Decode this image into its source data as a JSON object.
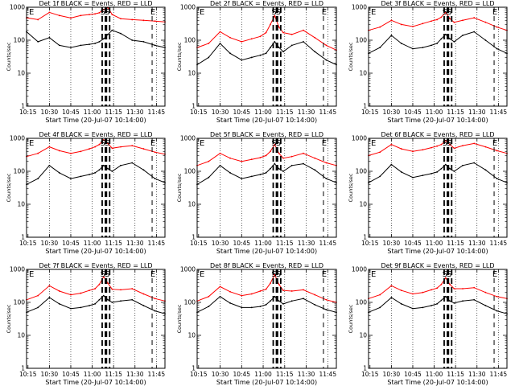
{
  "chart_data": [
    {
      "type": "line",
      "title": "Det 1f BLACK = Events, RED = LLD",
      "ylabel": "Counts/sec",
      "xlabel": "Start Time (20-Jul-07 10:14:00)",
      "yscale": "log",
      "ylim": [
        1,
        1000
      ],
      "xlim": [
        "10:14",
        "11:51"
      ],
      "xticks": [
        "10:15",
        "10:30",
        "10:45",
        "11:00",
        "11:15",
        "11:30",
        "11:45"
      ],
      "yticks": [
        "1",
        "10",
        "100",
        "1000"
      ],
      "markers": [
        "E",
        "S",
        "S",
        "E"
      ],
      "series": [
        {
          "name": "LLD",
          "color": "#ff0000",
          "x": [
            "10:14",
            "10:22",
            "10:30",
            "10:37",
            "10:45",
            "10:52",
            "10:58",
            "11:02",
            "11:05",
            "11:08",
            "11:11",
            "11:14",
            "11:20",
            "11:28",
            "11:36",
            "11:44",
            "11:51"
          ],
          "values": [
            480,
            420,
            700,
            560,
            470,
            560,
            600,
            630,
            680,
            850,
            980,
            600,
            450,
            420,
            400,
            380,
            360
          ]
        },
        {
          "name": "Events",
          "color": "#000000",
          "x": [
            "10:14",
            "10:22",
            "10:30",
            "10:37",
            "10:45",
            "10:52",
            "10:58",
            "11:02",
            "11:05",
            "11:08",
            "11:11",
            "11:14",
            "11:20",
            "11:28",
            "11:36",
            "11:44",
            "11:51"
          ],
          "values": [
            180,
            90,
            120,
            70,
            60,
            70,
            75,
            80,
            90,
            110,
            150,
            200,
            160,
            100,
            90,
            70,
            60
          ]
        }
      ]
    },
    {
      "type": "line",
      "title": "Det 2f BLACK = Events, RED = LLD",
      "ylabel": "Counts/sec",
      "xlabel": "Start Time (20-Jul-07 10:14:00)",
      "yscale": "log",
      "ylim": [
        1,
        1000
      ],
      "xlim": [
        "10:14",
        "11:51"
      ],
      "xticks": [
        "10:15",
        "10:30",
        "10:45",
        "11:00",
        "11:15",
        "11:30",
        "11:45"
      ],
      "yticks": [
        "1",
        "10",
        "100",
        "1000"
      ],
      "markers": [
        "E",
        "S",
        "S",
        "E"
      ],
      "series": [
        {
          "name": "LLD",
          "color": "#ff0000",
          "x": [
            "10:14",
            "10:22",
            "10:30",
            "10:37",
            "10:45",
            "10:52",
            "10:58",
            "11:02",
            "11:05",
            "11:08",
            "11:11",
            "11:14",
            "11:20",
            "11:28",
            "11:36",
            "11:44",
            "11:51"
          ],
          "values": [
            60,
            80,
            180,
            120,
            90,
            110,
            130,
            170,
            300,
            550,
            250,
            170,
            150,
            200,
            120,
            70,
            50
          ]
        },
        {
          "name": "Events",
          "color": "#000000",
          "x": [
            "10:14",
            "10:22",
            "10:30",
            "10:37",
            "10:45",
            "10:52",
            "10:58",
            "11:02",
            "11:05",
            "11:08",
            "11:11",
            "11:14",
            "11:20",
            "11:28",
            "11:36",
            "11:44",
            "11:51"
          ],
          "values": [
            18,
            30,
            80,
            40,
            25,
            30,
            35,
            40,
            60,
            90,
            60,
            45,
            70,
            90,
            45,
            25,
            18
          ]
        }
      ]
    },
    {
      "type": "line",
      "title": "Det 3f BLACK = Events, RED = LLD",
      "ylabel": "Counts/sec",
      "xlabel": "Start Time (20-Jul-07 10:14:00)",
      "yscale": "log",
      "ylim": [
        1,
        1000
      ],
      "xlim": [
        "10:14",
        "11:51"
      ],
      "xticks": [
        "10:15",
        "10:30",
        "10:45",
        "11:00",
        "11:15",
        "11:30",
        "11:45"
      ],
      "yticks": [
        "1",
        "10",
        "100",
        "1000"
      ],
      "markers": [
        "E",
        "S",
        "S",
        "E"
      ],
      "series": [
        {
          "name": "LLD",
          "color": "#ff0000",
          "x": [
            "10:14",
            "10:22",
            "10:30",
            "10:37",
            "10:45",
            "10:52",
            "10:58",
            "11:02",
            "11:05",
            "11:08",
            "11:11",
            "11:14",
            "11:20",
            "11:28",
            "11:36",
            "11:44",
            "11:51"
          ],
          "values": [
            200,
            250,
            400,
            300,
            260,
            320,
            380,
            420,
            500,
            700,
            450,
            350,
            400,
            480,
            350,
            250,
            200
          ]
        },
        {
          "name": "Events",
          "color": "#000000",
          "x": [
            "10:14",
            "10:22",
            "10:30",
            "10:37",
            "10:45",
            "10:52",
            "10:58",
            "11:02",
            "11:05",
            "11:08",
            "11:11",
            "11:14",
            "11:20",
            "11:28",
            "11:36",
            "11:44",
            "11:51"
          ],
          "values": [
            40,
            60,
            140,
            80,
            55,
            60,
            70,
            80,
            110,
            150,
            110,
            90,
            140,
            180,
            100,
            55,
            40
          ]
        }
      ]
    },
    {
      "type": "line",
      "title": "Det 4f BLACK = Events, RED = LLD",
      "ylabel": "Counts/sec",
      "xlabel": "Start Time (20-Jul-07 10:14:00)",
      "yscale": "log",
      "ylim": [
        1,
        1000
      ],
      "xlim": [
        "10:14",
        "11:51"
      ],
      "xticks": [
        "10:15",
        "10:30",
        "10:45",
        "11:00",
        "11:15",
        "11:30",
        "11:45"
      ],
      "yticks": [
        "1",
        "10",
        "100",
        "1000"
      ],
      "markers": [
        "E",
        "S",
        "S",
        "E"
      ],
      "series": [
        {
          "name": "LLD",
          "color": "#ff0000",
          "x": [
            "10:14",
            "10:22",
            "10:30",
            "10:37",
            "10:45",
            "10:52",
            "10:58",
            "11:02",
            "11:05",
            "11:08",
            "11:11",
            "11:14",
            "11:20",
            "11:28",
            "11:36",
            "11:44",
            "11:51"
          ],
          "values": [
            280,
            350,
            550,
            420,
            350,
            400,
            480,
            550,
            650,
            900,
            700,
            500,
            550,
            600,
            480,
            380,
            330
          ]
        },
        {
          "name": "Events",
          "color": "#000000",
          "x": [
            "10:14",
            "10:22",
            "10:30",
            "10:37",
            "10:45",
            "10:52",
            "10:58",
            "11:02",
            "11:05",
            "11:08",
            "11:11",
            "11:14",
            "11:20",
            "11:28",
            "11:36",
            "11:44",
            "11:51"
          ],
          "values": [
            40,
            60,
            150,
            90,
            60,
            70,
            80,
            90,
            110,
            150,
            120,
            100,
            150,
            180,
            110,
            60,
            45
          ]
        }
      ]
    },
    {
      "type": "line",
      "title": "Det 5f BLACK = Events, RED = LLD",
      "ylabel": "Counts/sec",
      "xlabel": "Start Time (20-Jul-07 10:14:00)",
      "yscale": "log",
      "ylim": [
        1,
        1000
      ],
      "xlim": [
        "10:14",
        "11:51"
      ],
      "xticks": [
        "10:15",
        "10:30",
        "10:45",
        "11:00",
        "11:15",
        "11:30",
        "11:45"
      ],
      "yticks": [
        "1",
        "10",
        "100",
        "1000"
      ],
      "markers": [
        "E",
        "S",
        "S",
        "E"
      ],
      "series": [
        {
          "name": "LLD",
          "color": "#ff0000",
          "x": [
            "10:14",
            "10:22",
            "10:30",
            "10:37",
            "10:45",
            "10:52",
            "10:58",
            "11:02",
            "11:05",
            "11:08",
            "11:11",
            "11:14",
            "11:20",
            "11:28",
            "11:36",
            "11:44",
            "11:51"
          ],
          "values": [
            150,
            200,
            350,
            250,
            200,
            230,
            260,
            300,
            400,
            650,
            350,
            250,
            280,
            350,
            250,
            180,
            150
          ]
        },
        {
          "name": "Events",
          "color": "#000000",
          "x": [
            "10:14",
            "10:22",
            "10:30",
            "10:37",
            "10:45",
            "10:52",
            "10:58",
            "11:02",
            "11:05",
            "11:08",
            "11:11",
            "11:14",
            "11:20",
            "11:28",
            "11:36",
            "11:44",
            "11:51"
          ],
          "values": [
            40,
            65,
            150,
            90,
            60,
            70,
            80,
            90,
            120,
            170,
            120,
            100,
            150,
            170,
            110,
            60,
            45
          ]
        }
      ]
    },
    {
      "type": "line",
      "title": "Det 6f BLACK = Events, RED = LLD",
      "ylabel": "Counts/sec",
      "xlabel": "Start Time (20-Jul-07 10:14:00)",
      "yscale": "log",
      "ylim": [
        1,
        1000
      ],
      "xlim": [
        "10:14",
        "11:51"
      ],
      "xticks": [
        "10:15",
        "10:30",
        "10:45",
        "11:00",
        "11:15",
        "11:30",
        "11:45"
      ],
      "yticks": [
        "1",
        "10",
        "100",
        "1000"
      ],
      "markers": [
        "E",
        "S",
        "S",
        "E"
      ],
      "series": [
        {
          "name": "LLD",
          "color": "#ff0000",
          "x": [
            "10:14",
            "10:22",
            "10:30",
            "10:37",
            "10:45",
            "10:52",
            "10:58",
            "11:02",
            "11:05",
            "11:08",
            "11:11",
            "11:14",
            "11:20",
            "11:28",
            "11:36",
            "11:44",
            "11:51"
          ],
          "values": [
            300,
            380,
            650,
            480,
            400,
            450,
            520,
            580,
            650,
            850,
            650,
            500,
            600,
            700,
            550,
            420,
            350
          ]
        },
        {
          "name": "Events",
          "color": "#000000",
          "x": [
            "10:14",
            "10:22",
            "10:30",
            "10:37",
            "10:45",
            "10:52",
            "10:58",
            "11:02",
            "11:05",
            "11:08",
            "11:11",
            "11:14",
            "11:20",
            "11:28",
            "11:36",
            "11:44",
            "11:51"
          ],
          "values": [
            45,
            70,
            160,
            95,
            65,
            75,
            85,
            95,
            120,
            160,
            120,
            100,
            150,
            180,
            110,
            60,
            45
          ]
        }
      ]
    },
    {
      "type": "line",
      "title": "Det 7f BLACK = Events, RED = LLD",
      "ylabel": "Counts/sec",
      "xlabel": "Start Time (20-Jul-07 10:14:00)",
      "yscale": "log",
      "ylim": [
        1,
        1000
      ],
      "xlim": [
        "10:14",
        "11:51"
      ],
      "xticks": [
        "10:15",
        "10:30",
        "10:45",
        "11:00",
        "11:15",
        "11:30",
        "11:45"
      ],
      "yticks": [
        "1",
        "10",
        "100",
        "1000"
      ],
      "markers": [
        "E",
        "S",
        "S",
        "E"
      ],
      "series": [
        {
          "name": "LLD",
          "color": "#ff0000",
          "x": [
            "10:14",
            "10:22",
            "10:30",
            "10:37",
            "10:45",
            "10:52",
            "10:58",
            "11:02",
            "11:05",
            "11:08",
            "11:11",
            "11:14",
            "11:20",
            "11:28",
            "11:36",
            "11:44",
            "11:51"
          ],
          "values": [
            120,
            160,
            320,
            220,
            170,
            190,
            230,
            260,
            350,
            600,
            380,
            250,
            240,
            260,
            180,
            130,
            110
          ]
        },
        {
          "name": "Events",
          "color": "#000000",
          "x": [
            "10:14",
            "10:22",
            "10:30",
            "10:37",
            "10:45",
            "10:52",
            "10:58",
            "11:02",
            "11:05",
            "11:08",
            "11:11",
            "11:14",
            "11:20",
            "11:28",
            "11:36",
            "11:44",
            "11:51"
          ],
          "values": [
            50,
            70,
            140,
            90,
            65,
            70,
            80,
            90,
            120,
            160,
            120,
            100,
            110,
            120,
            80,
            55,
            45
          ]
        }
      ]
    },
    {
      "type": "line",
      "title": "Det 8f BLACK = Events, RED = LLD",
      "ylabel": "Counts/sec",
      "xlabel": "Start Time (20-Jul-07 10:14:00)",
      "yscale": "log",
      "ylim": [
        1,
        1000
      ],
      "xlim": [
        "10:14",
        "11:51"
      ],
      "xticks": [
        "10:15",
        "10:30",
        "10:45",
        "11:00",
        "11:15",
        "11:30",
        "11:45"
      ],
      "yticks": [
        "1",
        "10",
        "100",
        "1000"
      ],
      "markers": [
        "E",
        "S",
        "S",
        "E"
      ],
      "series": [
        {
          "name": "LLD",
          "color": "#ff0000",
          "x": [
            "10:14",
            "10:22",
            "10:30",
            "10:37",
            "10:45",
            "10:52",
            "10:58",
            "11:02",
            "11:05",
            "11:08",
            "11:11",
            "11:14",
            "11:20",
            "11:28",
            "11:36",
            "11:44",
            "11:51"
          ],
          "values": [
            110,
            150,
            300,
            210,
            160,
            180,
            220,
            250,
            380,
            700,
            350,
            230,
            220,
            240,
            170,
            120,
            100
          ]
        },
        {
          "name": "Events",
          "color": "#000000",
          "x": [
            "10:14",
            "10:22",
            "10:30",
            "10:37",
            "10:45",
            "10:52",
            "10:58",
            "11:02",
            "11:05",
            "11:08",
            "11:11",
            "11:14",
            "11:20",
            "11:28",
            "11:36",
            "11:44",
            "11:51"
          ],
          "values": [
            50,
            75,
            150,
            95,
            70,
            70,
            75,
            85,
            110,
            150,
            110,
            90,
            110,
            130,
            85,
            60,
            50
          ]
        }
      ]
    },
    {
      "type": "line",
      "title": "Det 9f BLACK = Events, RED = LLD",
      "ylabel": "Counts/sec",
      "xlabel": "Start Time (20-Jul-07 10:14:00)",
      "yscale": "log",
      "ylim": [
        1,
        1000
      ],
      "xlim": [
        "10:14",
        "11:51"
      ],
      "xticks": [
        "10:15",
        "10:30",
        "10:45",
        "11:00",
        "11:15",
        "11:30",
        "11:45"
      ],
      "yticks": [
        "1",
        "10",
        "100",
        "1000"
      ],
      "markers": [
        "E",
        "S",
        "S",
        "E"
      ],
      "series": [
        {
          "name": "LLD",
          "color": "#ff0000",
          "x": [
            "10:14",
            "10:22",
            "10:30",
            "10:37",
            "10:45",
            "10:52",
            "10:58",
            "11:02",
            "11:05",
            "11:08",
            "11:11",
            "11:14",
            "11:20",
            "11:28",
            "11:36",
            "11:44",
            "11:51"
          ],
          "values": [
            130,
            170,
            320,
            230,
            180,
            200,
            240,
            270,
            350,
            550,
            350,
            260,
            260,
            280,
            200,
            150,
            130
          ]
        },
        {
          "name": "Events",
          "color": "#000000",
          "x": [
            "10:14",
            "10:22",
            "10:30",
            "10:37",
            "10:45",
            "10:52",
            "10:58",
            "11:02",
            "11:05",
            "11:08",
            "11:11",
            "11:14",
            "11:20",
            "11:28",
            "11:36",
            "11:44",
            "11:51"
          ],
          "values": [
            50,
            70,
            140,
            90,
            65,
            70,
            80,
            90,
            115,
            150,
            110,
            95,
            110,
            120,
            80,
            55,
            45
          ]
        }
      ]
    }
  ]
}
